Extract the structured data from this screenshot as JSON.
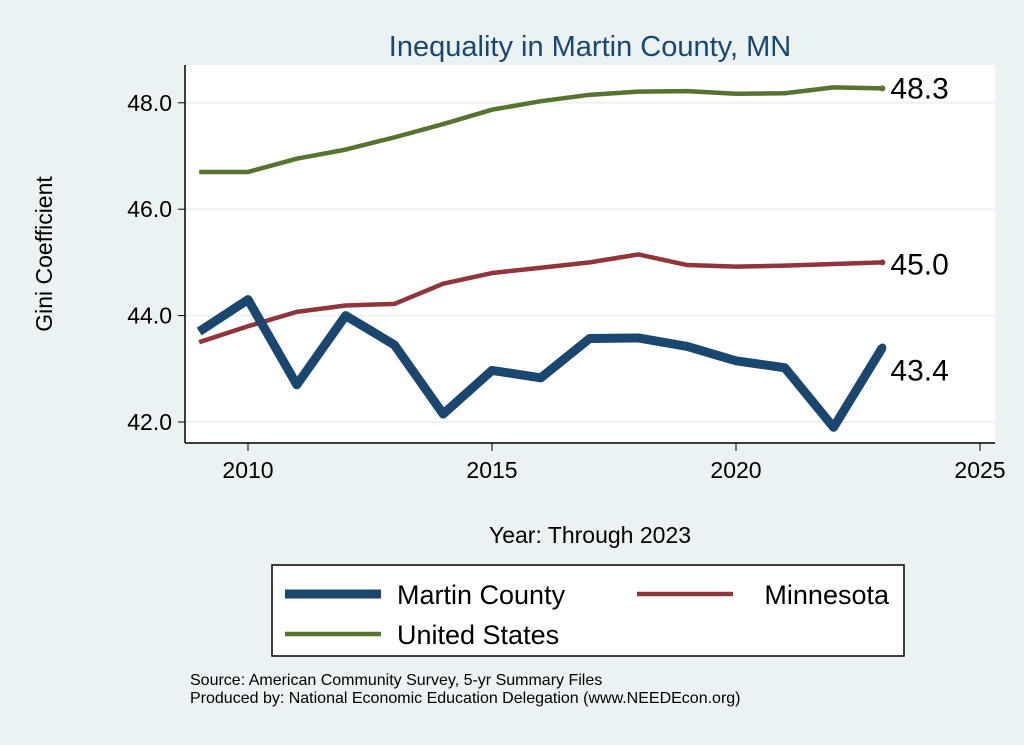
{
  "chart_data": {
    "type": "line",
    "title": "Inequality in Martin County, MN",
    "xlabel": "Year: Through 2023",
    "ylabel": "Gini Coefficient",
    "xlim": [
      2008.5,
      2025.5
    ],
    "ylim": [
      41.6,
      48.8
    ],
    "xticks": [
      2010,
      2015,
      2020,
      2025
    ],
    "yticks": [
      42.0,
      44.0,
      46.0,
      48.0
    ],
    "ytick_labels": [
      "42.0",
      "44.0",
      "46.0",
      "48.0"
    ],
    "grid": true,
    "legend_position": "bottom",
    "x": [
      2009,
      2010,
      2011,
      2012,
      2013,
      2014,
      2015,
      2016,
      2017,
      2018,
      2019,
      2020,
      2021,
      2022,
      2023
    ],
    "series": [
      {
        "name": "Martin County",
        "color": "#1a476f",
        "width": 9,
        "values": [
          43.7,
          44.3,
          42.7,
          44.0,
          43.45,
          42.15,
          42.97,
          42.83,
          43.57,
          43.58,
          43.42,
          43.15,
          43.02,
          41.9,
          43.4
        ],
        "end_label": "43.4"
      },
      {
        "name": "Minnesota",
        "color": "#90353b",
        "width": 4.5,
        "values": [
          43.5,
          43.8,
          44.07,
          44.19,
          44.22,
          44.6,
          44.8,
          44.9,
          45.0,
          45.15,
          44.95,
          44.92,
          44.94,
          44.97,
          45.0
        ],
        "end_label": "45.0"
      },
      {
        "name": "United States",
        "color": "#55752f",
        "width": 4.5,
        "values": [
          46.7,
          46.7,
          46.95,
          47.12,
          47.35,
          47.6,
          47.87,
          48.03,
          48.15,
          48.21,
          48.22,
          48.17,
          48.18,
          48.29,
          48.27
        ],
        "end_label": "48.3"
      }
    ]
  },
  "notes": {
    "source": "Source: American Community Survey, 5-yr Summary Files",
    "produced": "Produced by: National Economic Education Delegation (www.NEEDEcon.org)"
  }
}
